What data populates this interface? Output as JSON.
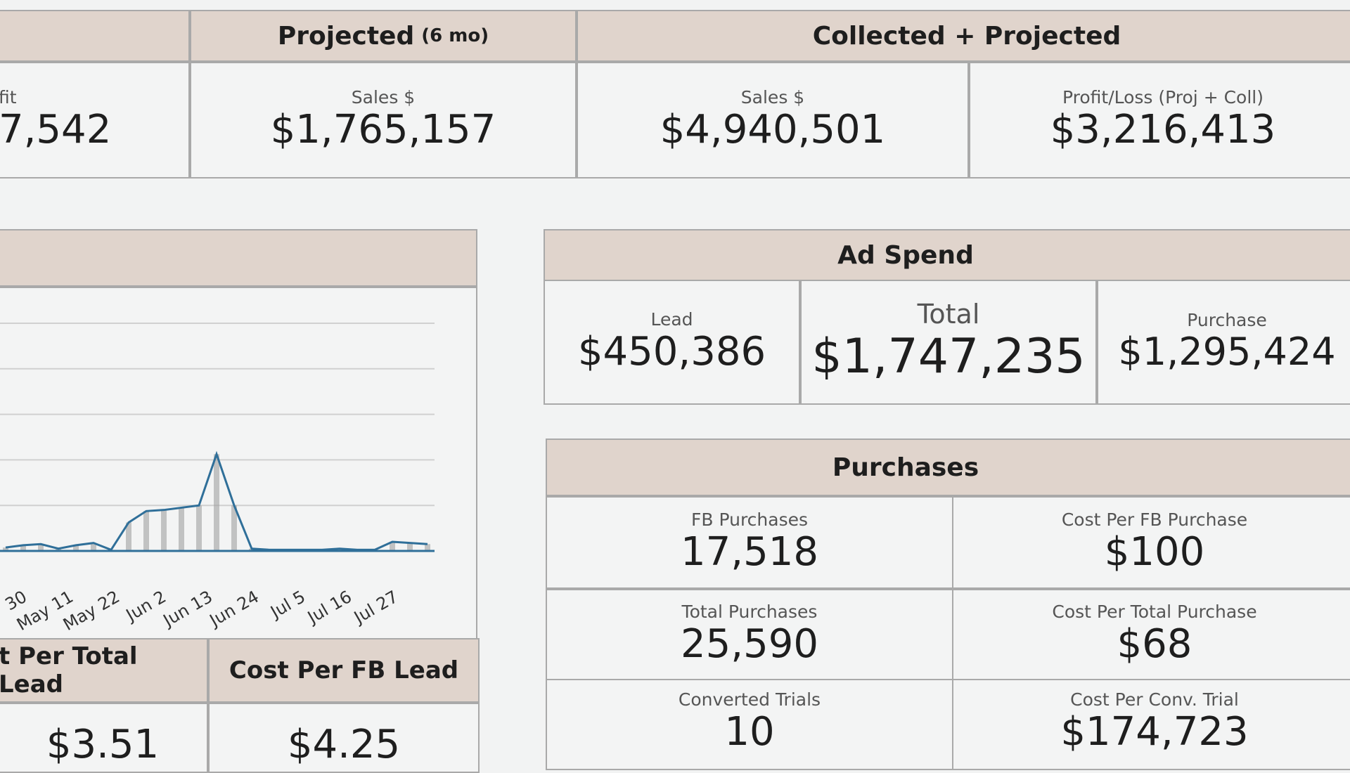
{
  "top": {
    "partial_header": "",
    "profit_label_fragment": "fit",
    "profit_value_fragment": "7,542",
    "projected_title": "Projected",
    "projected_sub": "(6 mo)",
    "projected_sales_label": "Sales $",
    "projected_sales_value": "$1,765,157",
    "cp_title": "Collected + Projected",
    "cp_sales_label": "Sales $",
    "cp_sales_value": "$4,940,501",
    "cp_pl_label": "Profit/Loss (Proj + Coll)",
    "cp_pl_value": "$3,216,413"
  },
  "ad_spend": {
    "title": "Ad Spend",
    "lead_label": "Lead",
    "lead_value": "$450,386",
    "total_label": "Total",
    "total_value": "$1,747,235",
    "purchase_label": "Purchase",
    "purchase_value": "$1,295,424"
  },
  "purchases": {
    "title": "Purchases",
    "rows": [
      {
        "left_label": "FB Purchases",
        "left_value": "17,518",
        "right_label": "Cost Per FB Purchase",
        "right_value": "$100"
      },
      {
        "left_label": "Total Purchases",
        "left_value": "25,590",
        "right_label": "Cost Per Total Purchase",
        "right_value": "$68"
      },
      {
        "left_label": "Converted Trials",
        "left_value": "10",
        "right_label": "Cost Per Conv. Trial",
        "right_value": "$174,723"
      }
    ]
  },
  "lead_costs": {
    "total_lead_title": "t Per Total Lead",
    "total_lead_value": "$3.51",
    "fb_lead_title": "Cost Per FB Lead",
    "fb_lead_value": "$4.25"
  },
  "chart_data": {
    "type": "area",
    "title": "",
    "xlabel": "",
    "ylabel": "",
    "x_ticks": [
      "30",
      "May 11",
      "May 22",
      "Jun 2",
      "Jun 13",
      "Jun 24",
      "Jul 5",
      "Jul 16",
      "Jul 27"
    ],
    "x": [
      "Apr 30",
      "May 5",
      "May 11",
      "May 16",
      "May 22",
      "May 27",
      "Jun 1",
      "Jun 2",
      "Jun 5",
      "Jun 8",
      "Jun 10",
      "Jun 11",
      "Jun 12",
      "Jun 13",
      "Jun 15",
      "Jun 19",
      "Jun 24",
      "Jul 1",
      "Jul 5",
      "Jul 10",
      "Jul 16",
      "Jul 22",
      "Jul 24",
      "Jul 27",
      "Jul 29"
    ],
    "values": [
      0.3,
      0.5,
      0.6,
      0.2,
      0.5,
      0.7,
      0.1,
      2.5,
      3.5,
      3.6,
      3.8,
      4.0,
      8.5,
      4.0,
      0.2,
      0.1,
      0.1,
      0.1,
      0.1,
      0.2,
      0.1,
      0.1,
      0.8,
      0.7,
      0.6
    ],
    "ylim": [
      0,
      20
    ],
    "grid": true,
    "color": "#2f6f99"
  }
}
